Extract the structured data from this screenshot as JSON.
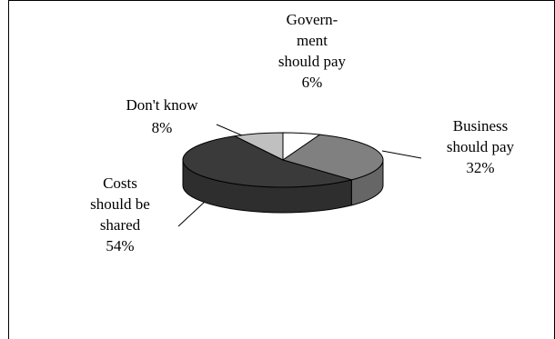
{
  "chart_data": {
    "type": "pie",
    "style": "3d-exploded-none",
    "title": "",
    "slices": [
      {
        "label_lines": [
          "Govern-",
          "ment",
          "should pay"
        ],
        "value": 6,
        "value_label": "6%",
        "color": "#ffffff"
      },
      {
        "label_lines": [
          "Business",
          "should pay"
        ],
        "value": 32,
        "value_label": "32%",
        "color": "#808080"
      },
      {
        "label_lines": [
          "Costs",
          "should be",
          "shared"
        ],
        "value": 54,
        "value_label": "54%",
        "color": "#3a3a3a"
      },
      {
        "label_lines": [
          "Don't know"
        ],
        "value": 8,
        "value_label": "8%",
        "color": "#c0c0c0"
      }
    ],
    "legend": "none",
    "grid": false
  }
}
